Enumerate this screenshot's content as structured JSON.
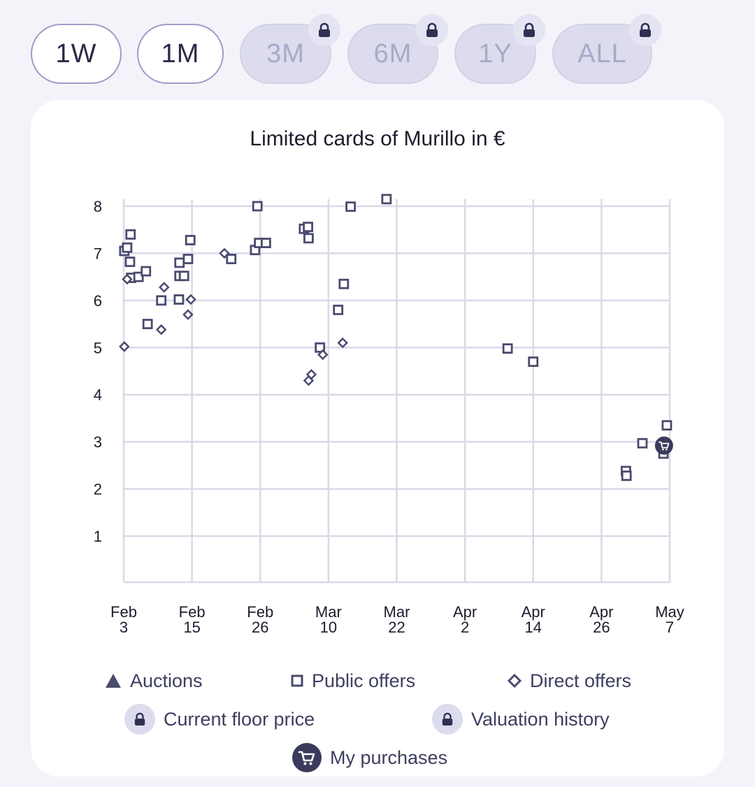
{
  "range_buttons": [
    {
      "label": "1W",
      "locked": false
    },
    {
      "label": "1M",
      "locked": false
    },
    {
      "label": "3M",
      "locked": true
    },
    {
      "label": "6M",
      "locked": true
    },
    {
      "label": "1Y",
      "locked": true
    },
    {
      "label": "ALL",
      "locked": true
    }
  ],
  "colors": {
    "marker": "#4a4b6e",
    "grid": "#d9d9e8",
    "accent": "#9b9dc7",
    "locked_bg": "#dcdcee",
    "locked_text": "#a9a9c9"
  },
  "legend": {
    "auctions": "Auctions",
    "public_offers": "Public offers",
    "direct_offers": "Direct offers",
    "current_floor_price": "Current floor price",
    "valuation_history": "Valuation history",
    "my_purchases": "My purchases"
  },
  "chart_data": {
    "type": "scatter",
    "title": "Limited cards of Murillo in €",
    "xlabel": "",
    "ylabel": "",
    "ylim": [
      0,
      8
    ],
    "xlim_days": [
      0,
      96
    ],
    "y_ticks": [
      1,
      2,
      3,
      4,
      5,
      6,
      7,
      8
    ],
    "x_ticks": [
      {
        "day": 0,
        "line1": "Feb",
        "line2": "3"
      },
      {
        "day": 12,
        "line1": "Feb",
        "line2": "15"
      },
      {
        "day": 24,
        "line1": "Feb",
        "line2": "26"
      },
      {
        "day": 36,
        "line1": "Mar",
        "line2": "10"
      },
      {
        "day": 48,
        "line1": "Mar",
        "line2": "22"
      },
      {
        "day": 60,
        "line1": "Apr",
        "line2": "2"
      },
      {
        "day": 72,
        "line1": "Apr",
        "line2": "14"
      },
      {
        "day": 84,
        "line1": "Apr",
        "line2": "26"
      },
      {
        "day": 96,
        "line1": "May",
        "line2": "7"
      }
    ],
    "series": [
      {
        "name": "Public offers",
        "marker": "square",
        "points": [
          [
            0.1,
            7.05
          ],
          [
            0.6,
            7.12
          ],
          [
            1.2,
            7.4
          ],
          [
            1.1,
            6.82
          ],
          [
            1.3,
            6.48
          ],
          [
            2.6,
            6.5
          ],
          [
            3.9,
            6.62
          ],
          [
            4.2,
            5.5
          ],
          [
            6.6,
            6.0
          ],
          [
            9.7,
            6.02
          ],
          [
            9.8,
            6.8
          ],
          [
            9.8,
            6.52
          ],
          [
            10.6,
            6.52
          ],
          [
            11.3,
            6.88
          ],
          [
            11.7,
            7.28
          ],
          [
            18.9,
            6.88
          ],
          [
            23.1,
            7.07
          ],
          [
            23.5,
            8.0
          ],
          [
            23.8,
            7.22
          ],
          [
            25.0,
            7.22
          ],
          [
            31.7,
            7.52
          ],
          [
            32.4,
            7.56
          ],
          [
            32.5,
            7.32
          ],
          [
            34.5,
            5.0
          ],
          [
            37.7,
            5.8
          ],
          [
            38.7,
            6.35
          ],
          [
            39.9,
            7.99
          ],
          [
            46.2,
            8.15
          ],
          [
            67.5,
            4.98
          ],
          [
            72.0,
            4.7
          ],
          [
            88.3,
            2.38
          ],
          [
            88.4,
            2.28
          ],
          [
            91.2,
            2.97
          ],
          [
            94.9,
            2.75
          ],
          [
            95.5,
            3.35
          ]
        ]
      },
      {
        "name": "Direct offers",
        "marker": "diamond",
        "points": [
          [
            0.1,
            5.02
          ],
          [
            0.6,
            6.45
          ],
          [
            6.6,
            5.38
          ],
          [
            7.1,
            6.28
          ],
          [
            11.3,
            5.7
          ],
          [
            11.8,
            6.02
          ],
          [
            17.7,
            7.0
          ],
          [
            32.5,
            4.3
          ],
          [
            33.0,
            4.43
          ],
          [
            35.0,
            4.85
          ],
          [
            38.5,
            5.1
          ]
        ]
      },
      {
        "name": "Auctions",
        "marker": "triangle",
        "points": []
      },
      {
        "name": "My purchases",
        "marker": "cart",
        "points": [
          [
            95.0,
            2.92
          ]
        ]
      }
    ]
  }
}
